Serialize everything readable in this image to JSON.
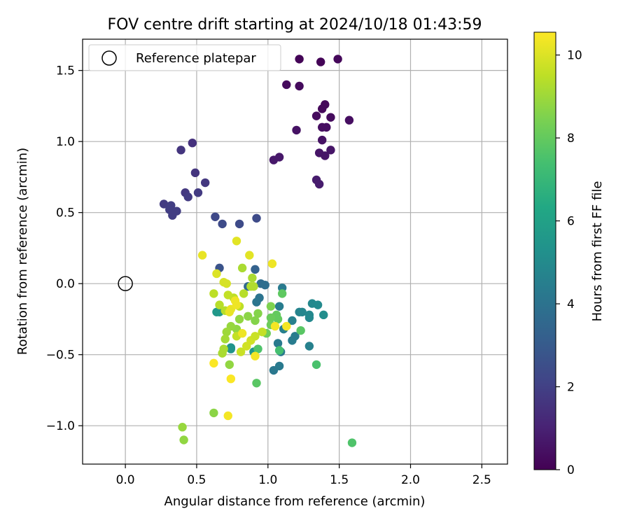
{
  "chart_data": {
    "type": "scatter",
    "title": "FOV centre drift starting at 2024/10/18 01:43:59",
    "xlabel": "Angular distance from reference (arcmin)",
    "ylabel": "Rotation from reference (arcmin)",
    "xlim": [
      -0.3,
      2.68
    ],
    "ylim": [
      -1.27,
      1.72
    ],
    "x_ticks": [
      0.0,
      0.5,
      1.0,
      1.5,
      2.0,
      2.5
    ],
    "x_tick_labels": [
      "0.0",
      "0.5",
      "1.0",
      "1.5",
      "2.0",
      "2.5"
    ],
    "y_ticks": [
      -1.0,
      -0.5,
      0.0,
      0.5,
      1.0,
      1.5
    ],
    "y_tick_labels": [
      "−1.0",
      "−0.5",
      "0.0",
      "0.5",
      "1.0",
      "1.5"
    ],
    "grid": true,
    "legend": {
      "placement": "top-left",
      "entries": [
        "Reference platepar"
      ]
    },
    "reference_point": {
      "x": 0.0,
      "y": 0.0
    },
    "colorbar": {
      "label": "Hours from first FF file",
      "colormap": "viridis",
      "min": 0,
      "max": 10.55,
      "ticks": [
        0,
        2,
        4,
        6,
        8,
        10
      ],
      "tick_labels": [
        "0",
        "2",
        "4",
        "6",
        "8",
        "10"
      ]
    },
    "points": [
      {
        "x": 1.22,
        "y": 1.58,
        "c": 0.1
      },
      {
        "x": 1.37,
        "y": 1.56,
        "c": 0.1
      },
      {
        "x": 1.49,
        "y": 1.58,
        "c": 0.2
      },
      {
        "x": 1.13,
        "y": 1.4,
        "c": 0.3
      },
      {
        "x": 1.22,
        "y": 1.39,
        "c": 0.3
      },
      {
        "x": 1.4,
        "y": 1.26,
        "c": 0.2
      },
      {
        "x": 1.38,
        "y": 1.23,
        "c": 0.2
      },
      {
        "x": 1.34,
        "y": 1.18,
        "c": 0.3
      },
      {
        "x": 1.44,
        "y": 1.17,
        "c": 0.3
      },
      {
        "x": 1.57,
        "y": 1.15,
        "c": 0.4
      },
      {
        "x": 1.38,
        "y": 1.1,
        "c": 0.4
      },
      {
        "x": 1.41,
        "y": 1.1,
        "c": 0.4
      },
      {
        "x": 1.2,
        "y": 1.08,
        "c": 0.5
      },
      {
        "x": 1.38,
        "y": 1.01,
        "c": 0.5
      },
      {
        "x": 1.44,
        "y": 0.94,
        "c": 0.6
      },
      {
        "x": 1.36,
        "y": 0.92,
        "c": 0.6
      },
      {
        "x": 1.4,
        "y": 0.9,
        "c": 0.6
      },
      {
        "x": 1.08,
        "y": 0.89,
        "c": 0.7
      },
      {
        "x": 1.04,
        "y": 0.87,
        "c": 0.7
      },
      {
        "x": 1.34,
        "y": 0.73,
        "c": 0.8
      },
      {
        "x": 1.36,
        "y": 0.7,
        "c": 0.8
      },
      {
        "x": 0.47,
        "y": 0.99,
        "c": 1.5
      },
      {
        "x": 0.39,
        "y": 0.94,
        "c": 1.6
      },
      {
        "x": 0.49,
        "y": 0.78,
        "c": 1.6
      },
      {
        "x": 0.56,
        "y": 0.71,
        "c": 1.7
      },
      {
        "x": 0.42,
        "y": 0.64,
        "c": 1.7
      },
      {
        "x": 0.51,
        "y": 0.64,
        "c": 1.8
      },
      {
        "x": 0.44,
        "y": 0.61,
        "c": 1.8
      },
      {
        "x": 0.27,
        "y": 0.56,
        "c": 1.8
      },
      {
        "x": 0.32,
        "y": 0.55,
        "c": 1.9
      },
      {
        "x": 0.31,
        "y": 0.52,
        "c": 1.9
      },
      {
        "x": 0.36,
        "y": 0.51,
        "c": 1.9
      },
      {
        "x": 0.33,
        "y": 0.48,
        "c": 1.9
      },
      {
        "x": 0.63,
        "y": 0.47,
        "c": 2.3
      },
      {
        "x": 0.68,
        "y": 0.42,
        "c": 2.4
      },
      {
        "x": 0.8,
        "y": 0.42,
        "c": 2.4
      },
      {
        "x": 0.92,
        "y": 0.46,
        "c": 2.4
      },
      {
        "x": 0.66,
        "y": 0.11,
        "c": 2.7
      },
      {
        "x": 0.91,
        "y": 0.1,
        "c": 3.3
      },
      {
        "x": 0.86,
        "y": -0.02,
        "c": 3.6
      },
      {
        "x": 0.95,
        "y": 0.0,
        "c": 3.7
      },
      {
        "x": 0.98,
        "y": -0.01,
        "c": 3.8
      },
      {
        "x": 1.1,
        "y": -0.03,
        "c": 4.3
      },
      {
        "x": 0.94,
        "y": -0.1,
        "c": 4.0
      },
      {
        "x": 0.92,
        "y": -0.13,
        "c": 4.1
      },
      {
        "x": 1.08,
        "y": -0.16,
        "c": 4.4
      },
      {
        "x": 1.22,
        "y": -0.2,
        "c": 4.7
      },
      {
        "x": 1.24,
        "y": -0.2,
        "c": 4.8
      },
      {
        "x": 1.31,
        "y": -0.14,
        "c": 4.9
      },
      {
        "x": 1.35,
        "y": -0.15,
        "c": 5.0
      },
      {
        "x": 1.39,
        "y": -0.22,
        "c": 5.1
      },
      {
        "x": 1.29,
        "y": -0.22,
        "c": 4.9
      },
      {
        "x": 1.29,
        "y": -0.24,
        "c": 4.9
      },
      {
        "x": 1.17,
        "y": -0.26,
        "c": 4.6
      },
      {
        "x": 1.11,
        "y": -0.32,
        "c": 4.5
      },
      {
        "x": 1.19,
        "y": -0.37,
        "c": 4.4
      },
      {
        "x": 1.17,
        "y": -0.4,
        "c": 4.4
      },
      {
        "x": 1.07,
        "y": -0.42,
        "c": 4.3
      },
      {
        "x": 1.09,
        "y": -0.48,
        "c": 4.3
      },
      {
        "x": 1.29,
        "y": -0.44,
        "c": 4.6
      },
      {
        "x": 1.08,
        "y": -0.58,
        "c": 4.3
      },
      {
        "x": 1.04,
        "y": -0.61,
        "c": 4.2
      },
      {
        "x": 0.66,
        "y": -0.2,
        "c": 5.7
      },
      {
        "x": 0.64,
        "y": -0.2,
        "c": 5.6
      },
      {
        "x": 0.9,
        "y": -0.48,
        "c": 5.5
      },
      {
        "x": 0.74,
        "y": -0.45,
        "c": 5.3
      },
      {
        "x": 0.74,
        "y": -0.46,
        "c": 5.4
      },
      {
        "x": 1.34,
        "y": -0.57,
        "c": 7.5
      },
      {
        "x": 1.08,
        "y": -0.47,
        "c": 7.4
      },
      {
        "x": 0.93,
        "y": -0.46,
        "c": 7.6
      },
      {
        "x": 0.92,
        "y": -0.7,
        "c": 7.8
      },
      {
        "x": 1.59,
        "y": -1.12,
        "c": 7.6
      },
      {
        "x": 1.23,
        "y": -0.33,
        "c": 7.8
      },
      {
        "x": 1.1,
        "y": -0.07,
        "c": 7.9
      },
      {
        "x": 1.06,
        "y": -0.22,
        "c": 8.0
      },
      {
        "x": 1.07,
        "y": -0.25,
        "c": 8.0
      },
      {
        "x": 1.02,
        "y": -0.24,
        "c": 8.1
      },
      {
        "x": 1.02,
        "y": -0.29,
        "c": 8.2
      },
      {
        "x": 0.99,
        "y": -0.35,
        "c": 8.2
      },
      {
        "x": 1.02,
        "y": -0.16,
        "c": 8.5
      },
      {
        "x": 0.93,
        "y": -0.21,
        "c": 8.6
      },
      {
        "x": 0.91,
        "y": -0.26,
        "c": 8.6
      },
      {
        "x": 0.86,
        "y": -0.23,
        "c": 8.7
      },
      {
        "x": 0.8,
        "y": -0.25,
        "c": 8.8
      },
      {
        "x": 0.78,
        "y": -0.32,
        "c": 8.8
      },
      {
        "x": 0.74,
        "y": -0.3,
        "c": 8.9
      },
      {
        "x": 0.71,
        "y": -0.34,
        "c": 9.0
      },
      {
        "x": 0.7,
        "y": -0.39,
        "c": 9.1
      },
      {
        "x": 0.69,
        "y": -0.46,
        "c": 9.2
      },
      {
        "x": 0.68,
        "y": -0.49,
        "c": 9.2
      },
      {
        "x": 0.73,
        "y": -0.57,
        "c": 8.8
      },
      {
        "x": 0.62,
        "y": -0.91,
        "c": 8.7
      },
      {
        "x": 0.4,
        "y": -1.01,
        "c": 8.9
      },
      {
        "x": 0.41,
        "y": -1.1,
        "c": 8.8
      },
      {
        "x": 0.82,
        "y": 0.11,
        "c": 9.2
      },
      {
        "x": 0.89,
        "y": 0.04,
        "c": 9.2
      },
      {
        "x": 0.88,
        "y": -0.02,
        "c": 9.3
      },
      {
        "x": 0.9,
        "y": -0.02,
        "c": 9.3
      },
      {
        "x": 0.83,
        "y": -0.07,
        "c": 9.4
      },
      {
        "x": 0.76,
        "y": -0.1,
        "c": 9.5
      },
      {
        "x": 0.72,
        "y": -0.08,
        "c": 9.6
      },
      {
        "x": 0.62,
        "y": -0.07,
        "c": 9.5
      },
      {
        "x": 0.66,
        "y": -0.15,
        "c": 9.4
      },
      {
        "x": 0.7,
        "y": -0.19,
        "c": 9.4
      },
      {
        "x": 0.8,
        "y": -0.16,
        "c": 9.5
      },
      {
        "x": 0.78,
        "y": -0.37,
        "c": 9.6
      },
      {
        "x": 0.81,
        "y": -0.48,
        "c": 9.7
      },
      {
        "x": 0.88,
        "y": -0.4,
        "c": 9.8
      },
      {
        "x": 0.91,
        "y": -0.37,
        "c": 9.7
      },
      {
        "x": 0.96,
        "y": -0.34,
        "c": 9.6
      },
      {
        "x": 0.85,
        "y": -0.44,
        "c": 9.8
      },
      {
        "x": 0.69,
        "y": 0.01,
        "c": 9.9
      },
      {
        "x": 0.71,
        "y": 0.0,
        "c": 9.9
      },
      {
        "x": 0.64,
        "y": 0.07,
        "c": 10.0
      },
      {
        "x": 0.78,
        "y": 0.3,
        "c": 10.1
      },
      {
        "x": 0.87,
        "y": 0.2,
        "c": 10.1
      },
      {
        "x": 0.54,
        "y": 0.2,
        "c": 10.2
      },
      {
        "x": 1.03,
        "y": 0.14,
        "c": 10.3
      },
      {
        "x": 0.74,
        "y": -0.18,
        "c": 10.2
      },
      {
        "x": 0.73,
        "y": -0.2,
        "c": 10.2
      },
      {
        "x": 0.77,
        "y": -0.12,
        "c": 10.3
      },
      {
        "x": 0.78,
        "y": -0.15,
        "c": 10.3
      },
      {
        "x": 0.82,
        "y": -0.35,
        "c": 10.3
      },
      {
        "x": 1.05,
        "y": -0.3,
        "c": 10.4
      },
      {
        "x": 1.13,
        "y": -0.3,
        "c": 10.4
      },
      {
        "x": 0.91,
        "y": -0.51,
        "c": 10.4
      },
      {
        "x": 0.62,
        "y": -0.56,
        "c": 10.5
      },
      {
        "x": 0.74,
        "y": -0.67,
        "c": 10.5
      },
      {
        "x": 0.72,
        "y": -0.93,
        "c": 10.4
      }
    ]
  }
}
